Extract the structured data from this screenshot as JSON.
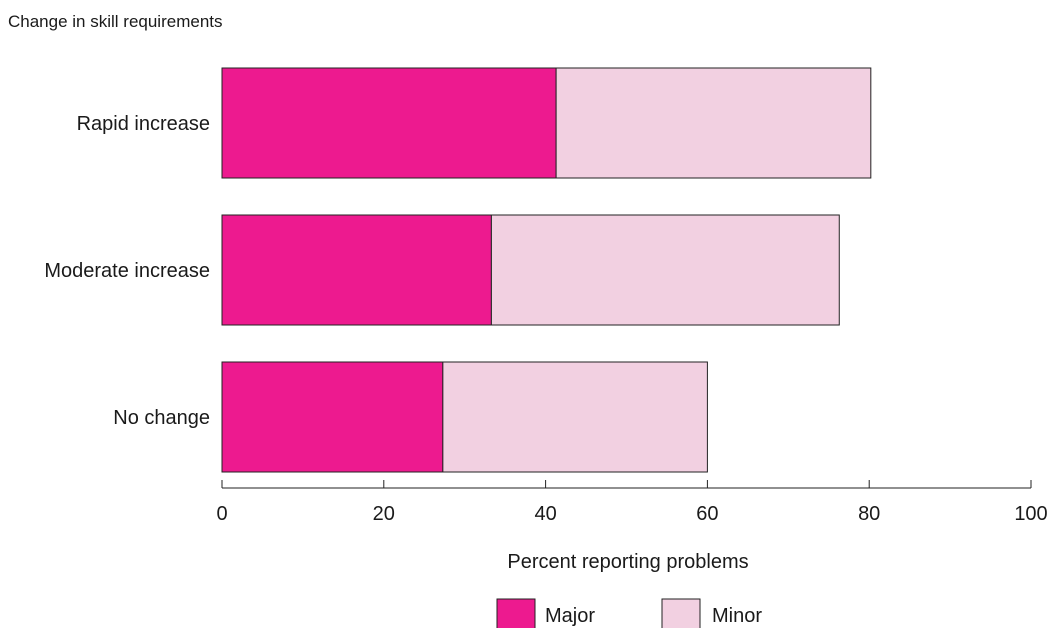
{
  "chart_data": {
    "type": "bar",
    "orientation": "horizontal",
    "stacked": true,
    "y_axis_title": "Change in skill requirements",
    "xlabel": "Percent reporting problems",
    "categories": [
      "Rapid increase",
      "Moderate increase",
      "No change"
    ],
    "series": [
      {
        "name": "Major",
        "values": [
          41.3,
          33.3,
          27.3
        ],
        "color": "#ed1a8f"
      },
      {
        "name": "Minor",
        "values": [
          38.9,
          43.0,
          32.7
        ],
        "color": "#f2d0e1"
      }
    ],
    "xlim": [
      0,
      100
    ],
    "xticks": [
      "0",
      "20",
      "40",
      "60",
      "80",
      "100"
    ],
    "grid": false,
    "legend_position": "bottom"
  }
}
